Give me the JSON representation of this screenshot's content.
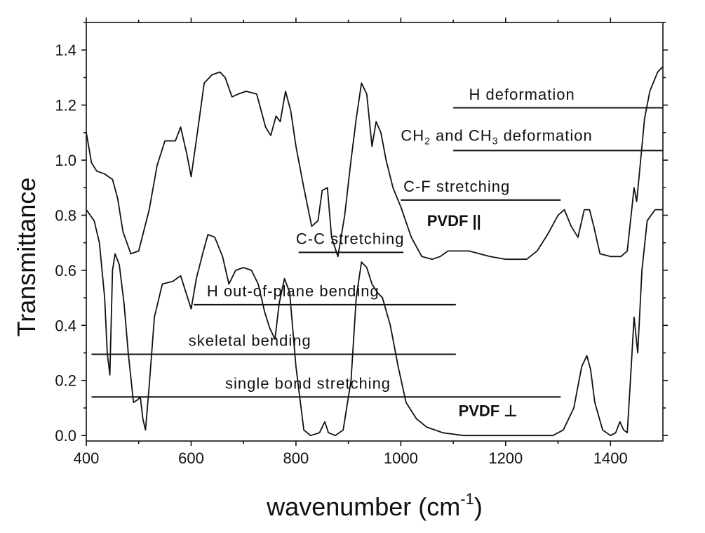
{
  "chart_data": {
    "type": "line",
    "xlabel": "wavenumber (cm",
    "xlabel_sup": "-1",
    "xlabel_end": ")",
    "ylabel": "Transmittance",
    "xlim": [
      400,
      1500
    ],
    "ylim": [
      -0.02,
      1.5
    ],
    "x_ticks": [
      "400",
      "600",
      "800",
      "1000",
      "1200",
      "1400"
    ],
    "y_ticks": [
      "0.0",
      "0.2",
      "0.4",
      "0.6",
      "0.8",
      "1.0",
      "1.2",
      "1.4"
    ],
    "x_tick_values": [
      400,
      600,
      800,
      1000,
      1200,
      1400
    ],
    "y_tick_values": [
      0,
      0.2,
      0.4,
      0.6,
      0.8,
      1.0,
      1.2,
      1.4
    ],
    "grid": false,
    "series": [
      {
        "name": "PVDF ||",
        "label_x": 1050,
        "label_y": 0.76,
        "points": [
          [
            400,
            1.1
          ],
          [
            410,
            0.99
          ],
          [
            420,
            0.96
          ],
          [
            435,
            0.95
          ],
          [
            450,
            0.93
          ],
          [
            460,
            0.86
          ],
          [
            470,
            0.74
          ],
          [
            485,
            0.66
          ],
          [
            500,
            0.67
          ],
          [
            520,
            0.82
          ],
          [
            535,
            0.98
          ],
          [
            550,
            1.07
          ],
          [
            570,
            1.07
          ],
          [
            580,
            1.12
          ],
          [
            592,
            1.02
          ],
          [
            600,
            0.94
          ],
          [
            612,
            1.1
          ],
          [
            625,
            1.28
          ],
          [
            640,
            1.31
          ],
          [
            655,
            1.32
          ],
          [
            665,
            1.3
          ],
          [
            678,
            1.23
          ],
          [
            690,
            1.24
          ],
          [
            705,
            1.25
          ],
          [
            725,
            1.24
          ],
          [
            742,
            1.12
          ],
          [
            752,
            1.09
          ],
          [
            762,
            1.16
          ],
          [
            770,
            1.14
          ],
          [
            780,
            1.25
          ],
          [
            790,
            1.18
          ],
          [
            800,
            1.05
          ],
          [
            815,
            0.9
          ],
          [
            830,
            0.76
          ],
          [
            842,
            0.78
          ],
          [
            850,
            0.89
          ],
          [
            860,
            0.9
          ],
          [
            868,
            0.72
          ],
          [
            880,
            0.65
          ],
          [
            893,
            0.8
          ],
          [
            905,
            1.0
          ],
          [
            915,
            1.15
          ],
          [
            925,
            1.28
          ],
          [
            935,
            1.24
          ],
          [
            945,
            1.05
          ],
          [
            953,
            1.14
          ],
          [
            962,
            1.1
          ],
          [
            972,
            1.0
          ],
          [
            985,
            0.9
          ],
          [
            1000,
            0.83
          ],
          [
            1020,
            0.72
          ],
          [
            1040,
            0.65
          ],
          [
            1060,
            0.64
          ],
          [
            1075,
            0.65
          ],
          [
            1090,
            0.67
          ],
          [
            1110,
            0.67
          ],
          [
            1130,
            0.67
          ],
          [
            1150,
            0.66
          ],
          [
            1170,
            0.65
          ],
          [
            1200,
            0.64
          ],
          [
            1240,
            0.64
          ],
          [
            1260,
            0.67
          ],
          [
            1280,
            0.73
          ],
          [
            1300,
            0.8
          ],
          [
            1312,
            0.82
          ],
          [
            1325,
            0.76
          ],
          [
            1338,
            0.72
          ],
          [
            1350,
            0.82
          ],
          [
            1360,
            0.82
          ],
          [
            1368,
            0.76
          ],
          [
            1380,
            0.66
          ],
          [
            1400,
            0.65
          ],
          [
            1420,
            0.65
          ],
          [
            1432,
            0.67
          ],
          [
            1445,
            0.9
          ],
          [
            1450,
            0.85
          ],
          [
            1455,
            0.95
          ],
          [
            1465,
            1.15
          ],
          [
            1475,
            1.25
          ],
          [
            1490,
            1.32
          ],
          [
            1500,
            1.34
          ]
        ]
      },
      {
        "name": "PVDF ⊥",
        "label_x": 1110,
        "label_y": 0.07,
        "points": [
          [
            400,
            0.82
          ],
          [
            415,
            0.78
          ],
          [
            425,
            0.7
          ],
          [
            435,
            0.5
          ],
          [
            440,
            0.3
          ],
          [
            445,
            0.22
          ],
          [
            450,
            0.6
          ],
          [
            455,
            0.66
          ],
          [
            463,
            0.62
          ],
          [
            472,
            0.48
          ],
          [
            480,
            0.3
          ],
          [
            490,
            0.12
          ],
          [
            498,
            0.13
          ],
          [
            503,
            0.14
          ],
          [
            508,
            0.06
          ],
          [
            513,
            0.02
          ],
          [
            520,
            0.18
          ],
          [
            530,
            0.43
          ],
          [
            545,
            0.55
          ],
          [
            565,
            0.56
          ],
          [
            580,
            0.58
          ],
          [
            590,
            0.52
          ],
          [
            600,
            0.46
          ],
          [
            610,
            0.57
          ],
          [
            622,
            0.66
          ],
          [
            632,
            0.73
          ],
          [
            645,
            0.72
          ],
          [
            660,
            0.65
          ],
          [
            672,
            0.55
          ],
          [
            685,
            0.6
          ],
          [
            700,
            0.61
          ],
          [
            715,
            0.6
          ],
          [
            728,
            0.55
          ],
          [
            740,
            0.45
          ],
          [
            750,
            0.39
          ],
          [
            760,
            0.35
          ],
          [
            768,
            0.48
          ],
          [
            778,
            0.57
          ],
          [
            788,
            0.52
          ],
          [
            800,
            0.25
          ],
          [
            815,
            0.02
          ],
          [
            828,
            0.0
          ],
          [
            845,
            0.01
          ],
          [
            855,
            0.05
          ],
          [
            862,
            0.01
          ],
          [
            875,
            0.0
          ],
          [
            890,
            0.02
          ],
          [
            905,
            0.2
          ],
          [
            915,
            0.5
          ],
          [
            925,
            0.63
          ],
          [
            935,
            0.61
          ],
          [
            945,
            0.55
          ],
          [
            955,
            0.52
          ],
          [
            965,
            0.5
          ],
          [
            980,
            0.4
          ],
          [
            995,
            0.25
          ],
          [
            1010,
            0.12
          ],
          [
            1030,
            0.06
          ],
          [
            1050,
            0.03
          ],
          [
            1080,
            0.01
          ],
          [
            1120,
            0.0
          ],
          [
            1200,
            0.0
          ],
          [
            1290,
            0.0
          ],
          [
            1310,
            0.02
          ],
          [
            1330,
            0.1
          ],
          [
            1345,
            0.25
          ],
          [
            1355,
            0.29
          ],
          [
            1362,
            0.24
          ],
          [
            1370,
            0.12
          ],
          [
            1385,
            0.02
          ],
          [
            1400,
            0.0
          ],
          [
            1410,
            0.01
          ],
          [
            1418,
            0.05
          ],
          [
            1425,
            0.02
          ],
          [
            1432,
            0.01
          ],
          [
            1438,
            0.2
          ],
          [
            1445,
            0.43
          ],
          [
            1452,
            0.3
          ],
          [
            1460,
            0.6
          ],
          [
            1470,
            0.78
          ],
          [
            1485,
            0.82
          ],
          [
            1500,
            0.82
          ]
        ]
      }
    ],
    "annotations": [
      {
        "id": "h-deformation",
        "text": "H deformation",
        "x_text": 1130,
        "y_text": 1.22,
        "x0": 1100,
        "x1": 1500,
        "y": 1.19
      },
      {
        "id": "ch-deformation",
        "text_parts": [
          "CH",
          "2",
          " and CH",
          "3",
          " deformation"
        ],
        "x_text": 1000,
        "y_text": 1.07,
        "x0": 1100,
        "x1": 1500,
        "y": 1.035
      },
      {
        "id": "cf-stretching",
        "text": "C-F stretching",
        "x_text": 1005,
        "y_text": 0.885,
        "x0": 1000,
        "x1": 1305,
        "y": 0.855
      },
      {
        "id": "cc-stretching",
        "text": "C-C stretching",
        "x_text": 800,
        "y_text": 0.695,
        "x0": 805,
        "x1": 1005,
        "y": 0.665
      },
      {
        "id": "h-oop-bending",
        "text": "H out-of-plane bending",
        "x_text": 630,
        "y_text": 0.505,
        "x0": 605,
        "x1": 1105,
        "y": 0.475
      },
      {
        "id": "skeletal-bending",
        "text": "skeletal bending",
        "x_text": 595,
        "y_text": 0.325,
        "x0": 410,
        "x1": 1105,
        "y": 0.295
      },
      {
        "id": "single-bond-stretching",
        "text": "single bond stretching",
        "x_text": 665,
        "y_text": 0.17,
        "x0": 410,
        "x1": 1305,
        "y": 0.14
      }
    ]
  }
}
